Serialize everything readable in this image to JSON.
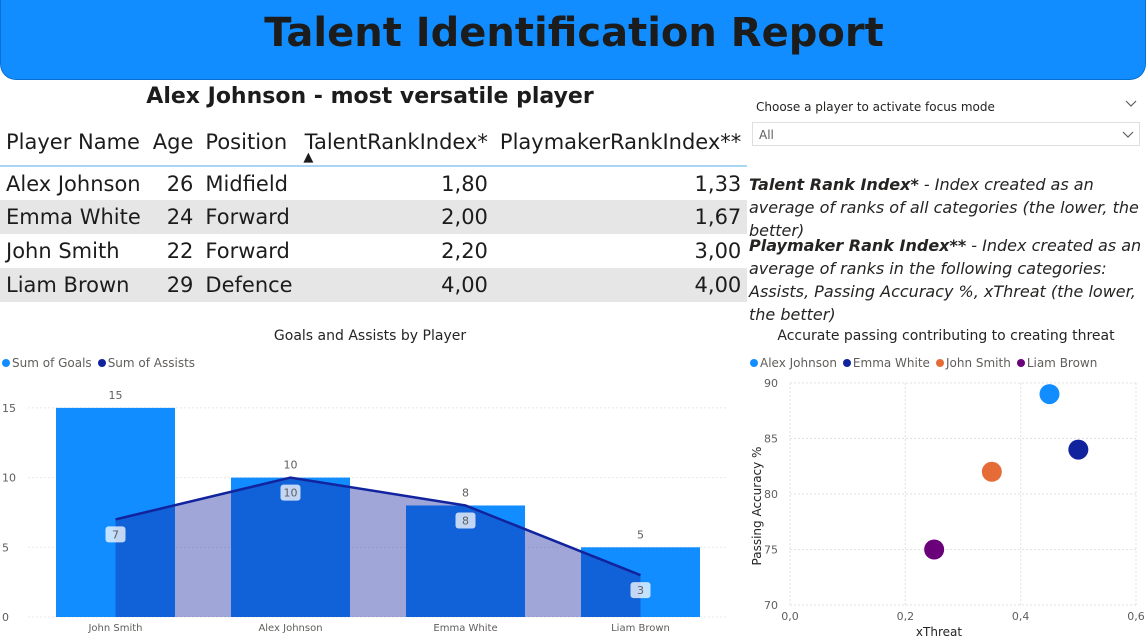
{
  "header": {
    "title": "Talent Identification Report"
  },
  "table": {
    "title": "Alex Johnson - most versatile player",
    "columns": [
      "Player Name",
      "Age",
      "Position",
      "TalentRankIndex*",
      "PlaymakerRankIndex**"
    ],
    "rows": [
      [
        "Alex Johnson",
        "26",
        "Midfield",
        "1,80",
        "1,33"
      ],
      [
        "Emma White",
        "24",
        "Forward",
        "2,00",
        "1,67"
      ],
      [
        "John Smith",
        "22",
        "Forward",
        "2,20",
        "3,00"
      ],
      [
        "Liam Brown",
        "29",
        "Defence",
        "4,00",
        "4,00"
      ]
    ]
  },
  "slicer": {
    "label": "Choose a player to activate focus mode",
    "value": "All"
  },
  "notes": {
    "talent_title": "Talent Rank Index*",
    "talent_text": " - Index created as an average of ranks of all categories (the lower, the better)",
    "playmaker_title": "Playmaker Rank Index**",
    "playmaker_text": " - Index created as an average of ranks in the following categories: Assists, Passing Accuracy %, xThreat (the lower, the better)"
  },
  "colors": {
    "banner": "#118dff",
    "goals": "#118dff",
    "assists": "#12239e",
    "john": "#e66c37",
    "liam": "#6b007b",
    "alex": "#118dff",
    "emma": "#12239e"
  },
  "chart_data": [
    {
      "type": "bar",
      "title": "Goals and Assists by Player",
      "categories": [
        "John Smith",
        "Alex Johnson",
        "Emma White",
        "Liam Brown"
      ],
      "series": [
        {
          "name": "Sum of Goals",
          "type": "bar",
          "values": [
            15,
            10,
            8,
            5
          ]
        },
        {
          "name": "Sum of Assists",
          "type": "area",
          "values": [
            7,
            10,
            8,
            3
          ]
        }
      ],
      "y_ticks": [
        0,
        5,
        10,
        15
      ],
      "ylim": [
        0,
        17
      ],
      "legend": "top-left"
    },
    {
      "type": "scatter",
      "title": "Accurate passing contributing to creating threat",
      "xlabel": "xThreat",
      "ylabel": "Passing Accuracy %",
      "x_ticks": [
        "0,0",
        "0,2",
        "0,4",
        "0,6"
      ],
      "y_ticks": [
        "70",
        "75",
        "80",
        "85",
        "90"
      ],
      "xlim": [
        0,
        0.6
      ],
      "ylim": [
        70,
        90
      ],
      "series": [
        {
          "name": "Alex Johnson",
          "x": 0.45,
          "y": 89
        },
        {
          "name": "Emma White",
          "x": 0.5,
          "y": 84
        },
        {
          "name": "John Smith",
          "x": 0.35,
          "y": 82
        },
        {
          "name": "Liam Brown",
          "x": 0.25,
          "y": 75
        }
      ],
      "legend": "top-left"
    }
  ]
}
